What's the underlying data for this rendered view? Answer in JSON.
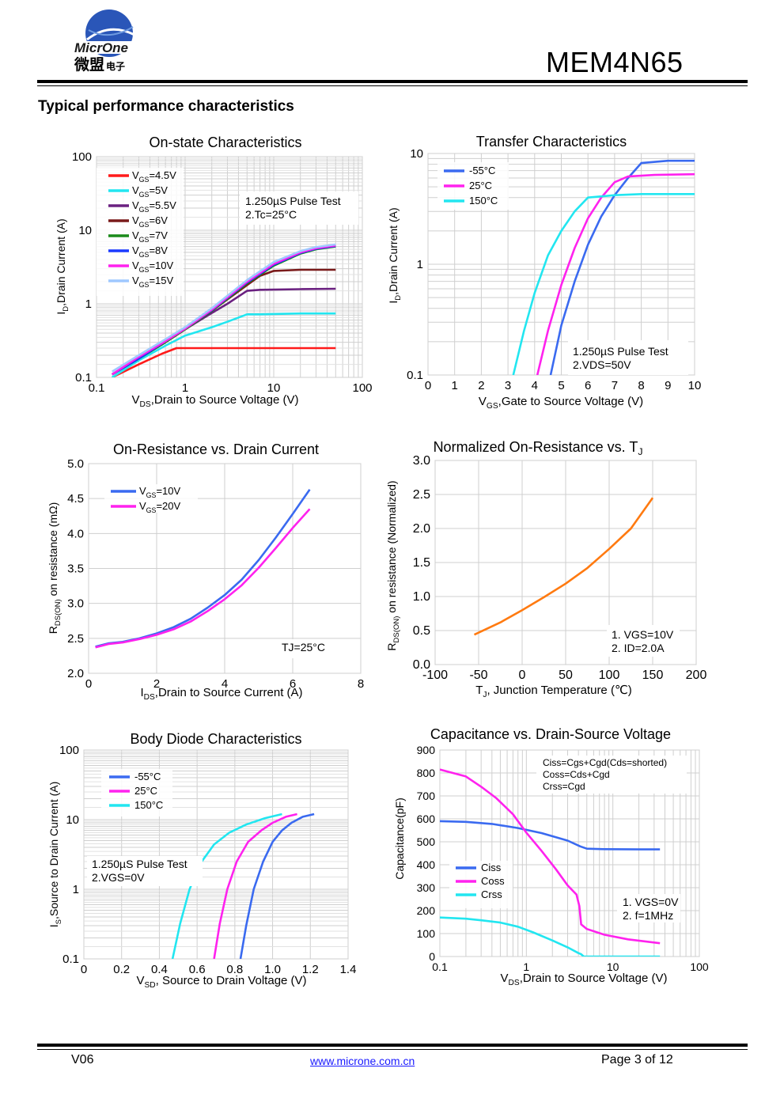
{
  "header": {
    "logo_name": "MicrOne",
    "logo_cn": "微盟",
    "logo_cn_small": "电子",
    "part_number": "MEM4N65",
    "section_title": "Typical performance characteristics"
  },
  "colors": {
    "red": "#ff1a1a",
    "cyan": "#22e6f0",
    "purple": "#6a2080",
    "maroon": "#7a1a1a",
    "green": "#1a8a1a",
    "blue": "#1a3aff",
    "magenta": "#ff22ee",
    "lightblue": "#9fc8ff",
    "midblue": "#3a6af0",
    "orange": "#ff7a10"
  },
  "chart_data": [
    {
      "id": "c1",
      "type": "line",
      "scale": "loglog",
      "title": "On-state Characteristics",
      "xlabel_main": "V",
      "xlabel_sub": "DS",
      "xlabel_rest": ",Drain to Source Voltage (V)",
      "ylabel_main": "I",
      "ylabel_sub": "D",
      "ylabel_rest": ",Drain Current (A)",
      "xlim": [
        0.1,
        100
      ],
      "ylim": [
        0.1,
        100
      ],
      "xticks": [
        "0.1",
        "1",
        "10",
        "100"
      ],
      "yticks": [
        "0.1",
        "1",
        "10",
        "100"
      ],
      "note": [
        "1.250µS Pulse Test",
        "2.Tc=25°C"
      ],
      "series": [
        {
          "name": "VGS=4.5V",
          "label_main": "V",
          "label_sub": "GS",
          "label_rest": "=4.5V",
          "color": "#ff1a1a",
          "x": [
            0.15,
            0.3,
            0.55,
            0.8,
            2,
            10,
            50
          ],
          "y": [
            0.1,
            0.15,
            0.21,
            0.25,
            0.25,
            0.25,
            0.25
          ]
        },
        {
          "name": "VGS=5V",
          "label_main": "V",
          "label_sub": "GS",
          "label_rest": "=5V",
          "color": "#22e6f0",
          "x": [
            0.15,
            0.3,
            0.6,
            1,
            2,
            3,
            5,
            7,
            20,
            50
          ],
          "y": [
            0.1,
            0.17,
            0.27,
            0.37,
            0.48,
            0.57,
            0.72,
            0.72,
            0.74,
            0.74
          ]
        },
        {
          "name": "VGS=5.5V",
          "label_main": "V",
          "label_sub": "GS",
          "label_rest": "=5.5V",
          "color": "#6a2080",
          "x": [
            0.15,
            0.3,
            0.6,
            1,
            2,
            3,
            5,
            7,
            20,
            50
          ],
          "y": [
            0.11,
            0.18,
            0.3,
            0.45,
            0.75,
            1.0,
            1.5,
            1.55,
            1.58,
            1.6
          ]
        },
        {
          "name": "VGS=6V",
          "label_main": "V",
          "label_sub": "GS",
          "label_rest": "=6V",
          "color": "#7a1a1a",
          "x": [
            0.15,
            0.3,
            0.6,
            1,
            2,
            3,
            5,
            7,
            10,
            20,
            50
          ],
          "y": [
            0.11,
            0.18,
            0.3,
            0.45,
            0.8,
            1.15,
            1.8,
            2.4,
            2.8,
            2.9,
            2.9
          ]
        },
        {
          "name": "VGS=7V",
          "label_main": "V",
          "label_sub": "GS",
          "label_rest": "=7V",
          "color": "#1a8a1a",
          "x": [
            0.15,
            0.3,
            0.6,
            1,
            2,
            5,
            10,
            20,
            30,
            50
          ],
          "y": [
            0.11,
            0.18,
            0.3,
            0.45,
            0.8,
            1.9,
            3.3,
            4.8,
            5.5,
            6.0
          ]
        },
        {
          "name": "VGS=8V",
          "label_main": "V",
          "label_sub": "GS",
          "label_rest": "=8V",
          "color": "#1a3aff",
          "x": [
            0.15,
            0.3,
            0.6,
            1,
            2,
            5,
            10,
            20,
            30,
            50
          ],
          "y": [
            0.11,
            0.18,
            0.31,
            0.46,
            0.82,
            1.95,
            3.4,
            4.9,
            5.6,
            6.1
          ]
        },
        {
          "name": "VGS=10V",
          "label_main": "V",
          "label_sub": "GS",
          "label_rest": "=10V",
          "color": "#ff22ee",
          "x": [
            0.15,
            0.3,
            0.6,
            1,
            2,
            5,
            10,
            20,
            30,
            50
          ],
          "y": [
            0.11,
            0.19,
            0.31,
            0.46,
            0.83,
            2.0,
            3.5,
            5.0,
            5.7,
            6.2
          ]
        },
        {
          "name": "VGS=15V",
          "label_main": "V",
          "label_sub": "GS",
          "label_rest": "=15V",
          "color": "#9fc8ff",
          "x": [
            0.15,
            0.3,
            0.6,
            1,
            2,
            5,
            10,
            20,
            30,
            50
          ],
          "y": [
            0.12,
            0.2,
            0.33,
            0.48,
            0.87,
            2.1,
            3.7,
            5.2,
            5.9,
            6.4
          ]
        }
      ]
    },
    {
      "id": "c2",
      "type": "line",
      "scale": "semilogy",
      "title": "Transfer Characteristics",
      "xlabel_main": "V",
      "xlabel_sub": "GS",
      "xlabel_rest": ",Gate to Source Voltage (V)",
      "ylabel_main": "I",
      "ylabel_sub": "D",
      "ylabel_rest": ",Drain Current (A)",
      "xlim": [
        0,
        10
      ],
      "ylim": [
        0.1,
        10
      ],
      "xticks": [
        "0",
        "1",
        "2",
        "3",
        "4",
        "5",
        "6",
        "7",
        "8",
        "9",
        "10"
      ],
      "yticks": [
        "0.1",
        "1",
        "10"
      ],
      "note": [
        "1.250µS Pulse Test",
        "2.VDS=50V"
      ],
      "series": [
        {
          "name": "-55°C",
          "color": "#3a6af0",
          "x": [
            4.6,
            5.0,
            5.5,
            6.0,
            6.5,
            7.0,
            7.5,
            8.0,
            9.0,
            10.0
          ],
          "y": [
            0.1,
            0.28,
            0.7,
            1.5,
            2.7,
            4.2,
            6.0,
            8.2,
            8.6,
            8.6
          ]
        },
        {
          "name": "25°C",
          "color": "#ff22ee",
          "x": [
            4.1,
            4.5,
            5.0,
            5.5,
            6.0,
            6.5,
            7.0,
            7.5,
            8.5,
            10.0
          ],
          "y": [
            0.1,
            0.25,
            0.65,
            1.4,
            2.6,
            4.0,
            5.5,
            6.2,
            6.4,
            6.5
          ]
        },
        {
          "name": "150°C",
          "color": "#22e6f0",
          "x": [
            3.2,
            3.6,
            4.0,
            4.5,
            5.0,
            5.5,
            6.0,
            7.0,
            8.0,
            10.0
          ],
          "y": [
            0.1,
            0.25,
            0.55,
            1.2,
            2.0,
            3.0,
            4.0,
            4.2,
            4.3,
            4.3
          ]
        }
      ]
    },
    {
      "id": "c3",
      "type": "line",
      "scale": "linear",
      "title": "On-Resistance vs. Drain Current",
      "xlabel_main": "I",
      "xlabel_sub": "DS",
      "xlabel_rest": ",Drain to Source Current (A)",
      "ylabel_main": "R",
      "ylabel_sub": "DS(ON)",
      "ylabel_rest": "  on resistance (mΩ)",
      "xlim": [
        0,
        8
      ],
      "ylim": [
        2.0,
        5.0
      ],
      "xticks": [
        "0",
        "2",
        "4",
        "6",
        "8"
      ],
      "yticks": [
        "2.0",
        "2.5",
        "3.0",
        "3.5",
        "4.0",
        "4.5",
        "5.0"
      ],
      "note": [
        "TJ=25°C"
      ],
      "series": [
        {
          "name": "VGS=10V",
          "label_main": "V",
          "label_sub": "GS",
          "label_rest": "=10V",
          "color": "#3a6af0",
          "x": [
            0.2,
            0.6,
            1.0,
            1.5,
            2.0,
            2.5,
            3.0,
            3.5,
            4.0,
            4.5,
            5.0,
            5.5,
            6.0,
            6.5
          ],
          "y": [
            2.38,
            2.43,
            2.45,
            2.5,
            2.57,
            2.66,
            2.78,
            2.94,
            3.12,
            3.34,
            3.62,
            3.94,
            4.28,
            4.63
          ]
        },
        {
          "name": "VGS=20V",
          "label_main": "V",
          "label_sub": "GS",
          "label_rest": "=20V",
          "color": "#ff22ee",
          "x": [
            0.2,
            0.6,
            1.0,
            1.5,
            2.0,
            2.5,
            3.0,
            3.5,
            4.0,
            4.5,
            5.0,
            5.5,
            6.0,
            6.5
          ],
          "y": [
            2.37,
            2.42,
            2.44,
            2.49,
            2.55,
            2.63,
            2.74,
            2.89,
            3.06,
            3.26,
            3.51,
            3.79,
            4.08,
            4.35
          ]
        }
      ]
    },
    {
      "id": "c4",
      "type": "line",
      "scale": "linear",
      "title": "Normalized On-Resistance vs. TJ",
      "xlabel_main": "T",
      "xlabel_sub": "J",
      "xlabel_rest": ", Junction Temperature  (℃)",
      "ylabel_main": "R",
      "ylabel_sub": "DS(ON)",
      "ylabel_rest": "  on resistance (Normalized)",
      "xlim": [
        -100,
        200
      ],
      "ylim": [
        0.0,
        3.0
      ],
      "xticks": [
        "-100",
        "-50",
        "0",
        "50",
        "100",
        "150",
        "200"
      ],
      "yticks": [
        "0.0",
        "0.5",
        "1.0",
        "1.5",
        "2.0",
        "2.5",
        "3.0"
      ],
      "note": [
        "1. VGS=10V",
        "2. ID=2.0A"
      ],
      "series": [
        {
          "name": "RDS(on)",
          "color": "#ff7a10",
          "x": [
            -55,
            -25,
            0,
            25,
            50,
            75,
            100,
            125,
            150
          ],
          "y": [
            0.44,
            0.62,
            0.8,
            0.99,
            1.19,
            1.42,
            1.7,
            2.0,
            2.45
          ]
        }
      ]
    },
    {
      "id": "c5",
      "type": "line",
      "scale": "semilogy",
      "title": "Body Diode Characteristics",
      "xlabel_main": "V",
      "xlabel_sub": "SD",
      "xlabel_rest": ", Source to Drain Voltage (V)",
      "ylabel_main": "I",
      "ylabel_sub": "S",
      "ylabel_rest": ",Source to Drain Current (A)",
      "xlim": [
        0,
        1.4
      ],
      "ylim": [
        0.1,
        100
      ],
      "xticks": [
        "0",
        "0.2",
        "0.4",
        "0.6",
        "0.8",
        "1.0",
        "1.2",
        "1.4"
      ],
      "yticks": [
        "0.1",
        "1",
        "10",
        "100"
      ],
      "note": [
        "1.250µS Pulse Test",
        "2.VGS=0V"
      ],
      "series": [
        {
          "name": "-55°C",
          "color": "#3a6af0",
          "x": [
            0.83,
            0.86,
            0.9,
            0.95,
            1.0,
            1.05,
            1.1,
            1.16,
            1.22
          ],
          "y": [
            0.1,
            0.3,
            1.0,
            2.5,
            4.8,
            7.0,
            9.0,
            11.0,
            12.0
          ]
        },
        {
          "name": "25°C",
          "color": "#ff22ee",
          "x": [
            0.69,
            0.72,
            0.76,
            0.81,
            0.87,
            0.94,
            1.0,
            1.07,
            1.13
          ],
          "y": [
            0.1,
            0.32,
            1.0,
            2.5,
            4.8,
            7.0,
            9.0,
            11.0,
            12.0
          ]
        },
        {
          "name": "150°C",
          "color": "#22e6f0",
          "x": [
            0.47,
            0.51,
            0.56,
            0.62,
            0.69,
            0.77,
            0.86,
            0.96,
            1.05
          ],
          "y": [
            0.1,
            0.32,
            1.0,
            2.4,
            4.4,
            6.5,
            8.5,
            10.5,
            12.0
          ]
        }
      ]
    },
    {
      "id": "c6",
      "type": "line",
      "scale": "semilogx",
      "title": "Capacitance vs. Drain-Source Voltage",
      "xlabel_main": "V",
      "xlabel_sub": "DS",
      "xlabel_rest": ",Drain to Source Voltage (V)",
      "ylabel_main": "Capacitance(pF)",
      "ylabel_sub": "",
      "ylabel_rest": "",
      "xlim": [
        0.1,
        100
      ],
      "ylim": [
        0,
        900
      ],
      "xticks": [
        "0.1",
        "1",
        "10",
        "100"
      ],
      "yticks": [
        "0",
        "100",
        "200",
        "300",
        "400",
        "500",
        "600",
        "700",
        "800",
        "900"
      ],
      "formula_note": [
        "Ciss=Cgs+Cgd(Cds=shorted)",
        "Coss=Cds+Cgd",
        "Crss=Cgd"
      ],
      "note": [
        "1. VGS=0V",
        "2. f=1MHz"
      ],
      "series": [
        {
          "name": "Ciss",
          "color": "#3a6af0",
          "x": [
            0.1,
            0.2,
            0.4,
            0.8,
            1.5,
            3,
            4.2,
            5,
            8,
            20,
            35
          ],
          "y": [
            590,
            587,
            578,
            560,
            538,
            505,
            480,
            470,
            468,
            467,
            467
          ]
        },
        {
          "name": "Coss",
          "color": "#ff22ee",
          "x": [
            0.1,
            0.2,
            0.3,
            0.45,
            0.7,
            1.0,
            1.5,
            2.2,
            3.0,
            3.8,
            4.1,
            4.3,
            5,
            8,
            15,
            35
          ],
          "y": [
            815,
            785,
            740,
            690,
            620,
            540,
            460,
            380,
            310,
            270,
            220,
            140,
            120,
            95,
            75,
            58
          ]
        },
        {
          "name": "Crss",
          "color": "#22e6f0",
          "x": [
            0.1,
            0.2,
            0.3,
            0.5,
            0.8,
            1.2,
            2,
            3,
            4,
            4.3,
            4.6,
            8,
            20,
            35
          ],
          "y": [
            170,
            165,
            158,
            148,
            130,
            105,
            70,
            40,
            15,
            10,
            0,
            0,
            0,
            0
          ]
        }
      ]
    }
  ],
  "footer": {
    "version": "V06",
    "website": "www.microne.com.cn",
    "page": "Page 3 of 12"
  }
}
